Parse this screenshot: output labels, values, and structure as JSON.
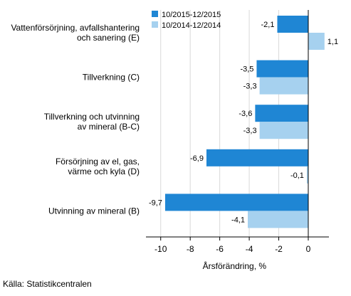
{
  "chart_data": {
    "type": "bar",
    "orientation": "horizontal",
    "categories": [
      [
        "Vattenförsörjning, avfallshantering",
        "och sanering (E)"
      ],
      [
        "Tillverkning (C)"
      ],
      [
        "Tillverkning och utvinning",
        "av mineral (B-C)"
      ],
      [
        "Försörjning av el, gas,",
        "värme och kyla (D)"
      ],
      [
        "Utvinning av mineral (B)"
      ]
    ],
    "series": [
      {
        "name": "10/2015-12/2015",
        "color": "#1f86d4",
        "values": [
          -2.1,
          -3.5,
          -3.6,
          -6.9,
          -9.7
        ],
        "labels": [
          "-2,1",
          "-3,5",
          "-3,6",
          "-6,9",
          "-9,7"
        ]
      },
      {
        "name": "10/2014-12/2014",
        "color": "#a6d1ef",
        "values": [
          1.1,
          -3.3,
          -3.3,
          -0.1,
          -4.1
        ],
        "labels": [
          "1,1",
          "-3,3",
          "-3,3",
          "-0,1",
          "-4,1"
        ]
      }
    ],
    "xlim": [
      -11,
      1.4
    ],
    "xticks": [
      -10,
      -8,
      -6,
      -4,
      -2,
      0
    ],
    "xticklabels": [
      "-10",
      "-8",
      "-6",
      "-4",
      "-2",
      "0"
    ],
    "xlabel": "Årsförändring, %",
    "grid": "vertical",
    "legend": "top-left"
  },
  "source": "Källa: Statistikcentralen"
}
